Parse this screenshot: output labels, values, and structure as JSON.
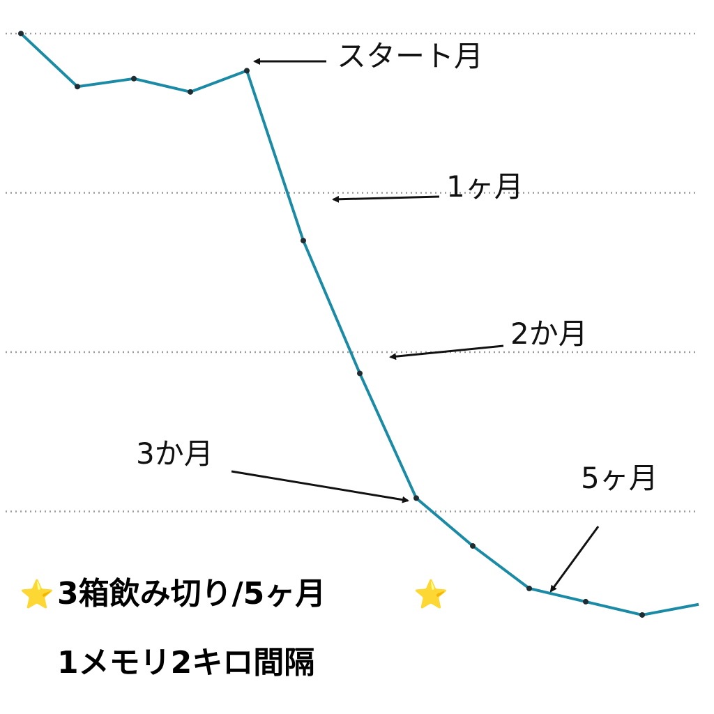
{
  "chart_data": {
    "type": "line",
    "x": [
      0,
      1,
      2,
      3,
      4,
      5,
      6,
      7,
      8,
      9,
      10,
      11,
      12
    ],
    "values": [
      0.0,
      -2.0,
      -1.7,
      -2.2,
      -1.4,
      -7.8,
      -12.8,
      -17.5,
      -19.3,
      -20.9,
      -21.4,
      -21.9,
      -21.5
    ],
    "ylim": [
      1.0,
      -25.0
    ],
    "gridlines": [
      0,
      -6,
      -12,
      -18
    ],
    "grid": "horizontal dotted",
    "line_color": "#1a8aa5",
    "annotations": [
      {
        "text": "スタート月",
        "index": 4
      },
      {
        "text": "1ヶ月",
        "index": 5
      },
      {
        "text": "2か月",
        "index": 6
      },
      {
        "text": "3か月",
        "index": 7
      },
      {
        "text": "5ヶ月",
        "index": 9
      }
    ]
  },
  "caption": {
    "line1": "3箱飲み切り/5ヶ月",
    "line2": "1メモリ2キロ間隔",
    "star_icon": "⭐"
  }
}
